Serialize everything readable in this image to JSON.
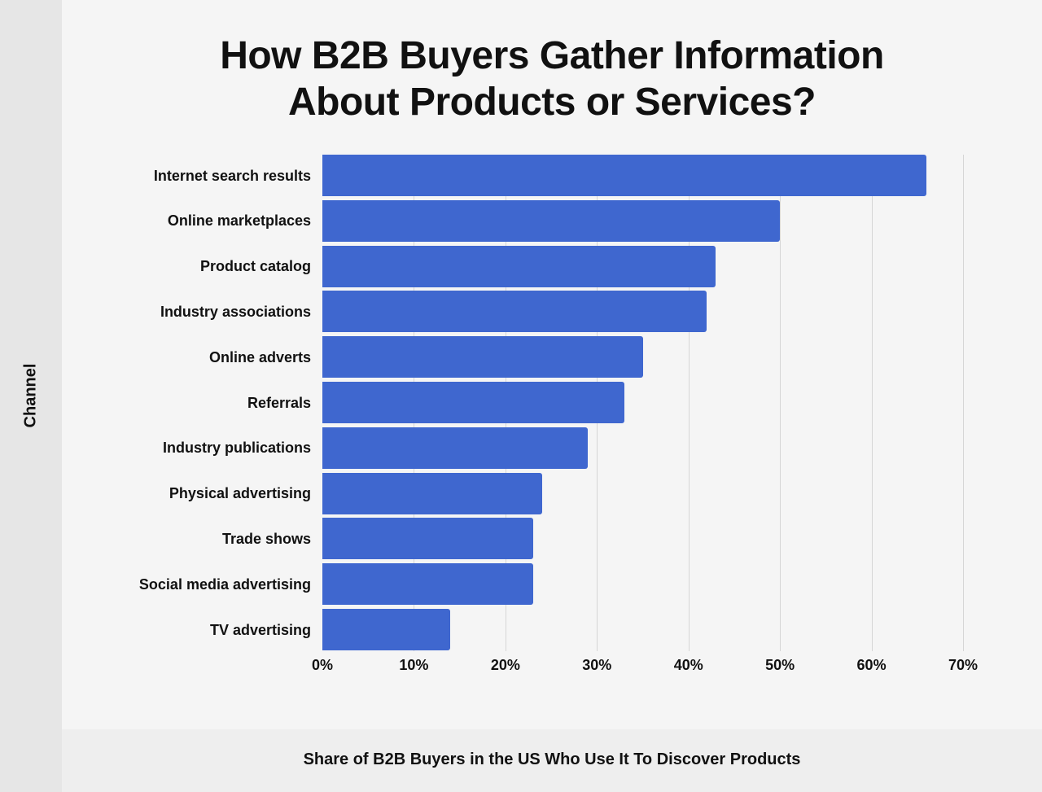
{
  "chart_data": {
    "type": "bar",
    "orientation": "horizontal",
    "title": "How B2B Buyers Gather Information About Products or Services?",
    "title_lines": [
      "How B2B Buyers Gather Information",
      "About Products or Services?"
    ],
    "xlabel": "Share of B2B Buyers in the US Who Use It To Discover Products",
    "ylabel": "Channel",
    "categories": [
      "Internet search results",
      "Online marketplaces",
      "Product catalog",
      "Industry associations",
      "Online adverts",
      "Referrals",
      "Industry publications",
      "Physical advertising",
      "Trade shows",
      "Social media advertising",
      "TV advertising"
    ],
    "values": [
      66,
      50,
      43,
      42,
      35,
      33,
      29,
      24,
      23,
      23,
      14
    ],
    "unit": "%",
    "xlim": [
      0,
      70
    ],
    "x_ticks": [
      "0%",
      "10%",
      "20%",
      "30%",
      "40%",
      "50%",
      "60%",
      "70%"
    ],
    "grid": true,
    "legend": null,
    "bar_color": "#3f67cf"
  }
}
